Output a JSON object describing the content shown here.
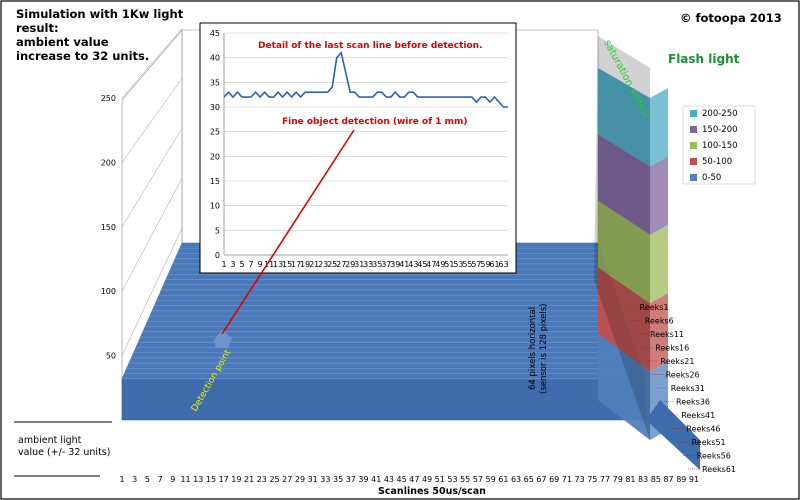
{
  "header": {
    "title_lines": [
      "Simulation with 1Kw light",
      "result:",
      "ambient value",
      "increase to 32 units."
    ],
    "copyright": "© fotoopa 2013"
  },
  "annotations": {
    "ambient_label_lines": [
      "ambient light",
      "value (+/- 32 units)"
    ],
    "detection_point": "Detection point",
    "fine_object": "Fine object detection (wire of 1 mm)",
    "pixels_note_lines": [
      "64 pixels horizontal",
      "(sensor is 128 pixels)"
    ],
    "saturation": "saturation sensor",
    "flash": "Flash light"
  },
  "chart_data": [
    {
      "type": "area3d",
      "ylim": [
        0,
        250
      ],
      "yticks": [
        50,
        100,
        150,
        200,
        250
      ],
      "xticks": [
        1,
        3,
        5,
        7,
        9,
        11,
        13,
        15,
        17,
        19,
        21,
        23,
        25,
        27,
        29,
        31,
        33,
        35,
        37,
        39,
        41,
        43,
        45,
        47,
        49,
        51,
        53,
        55,
        57,
        59,
        61,
        63,
        65,
        67,
        69,
        71,
        73,
        75,
        77,
        79,
        81,
        83,
        85,
        87,
        89,
        91
      ],
      "xlabel": "Scanlines 50us/scan",
      "series_labels": [
        "Reeks1",
        "Reeks6",
        "Reeks11",
        "Reeks16",
        "Reeks21",
        "Reeks26",
        "Reeks31",
        "Reeks36",
        "Reeks41",
        "Reeks46",
        "Reeks51",
        "Reeks56",
        "Reeks61"
      ],
      "legend": [
        {
          "label": "200-250",
          "color": "#4bacc6"
        },
        {
          "label": "150-200",
          "color": "#8064a2"
        },
        {
          "label": "100-150",
          "color": "#9bbb59"
        },
        {
          "label": "50-100",
          "color": "#c0504d"
        },
        {
          "label": "0-50",
          "color": "#4f81bd"
        }
      ],
      "ambient_value": 32,
      "flash_value": 250
    },
    {
      "type": "line",
      "title": "Detail of the last scan line before detection.",
      "ylim": [
        0,
        45
      ],
      "yticks": [
        0,
        5,
        10,
        15,
        20,
        25,
        30,
        35,
        40,
        45
      ],
      "xticks": [
        1,
        3,
        5,
        7,
        9,
        11,
        13,
        15,
        17,
        19,
        21,
        23,
        25,
        27,
        29,
        31,
        33,
        35,
        37,
        39,
        41,
        43,
        45,
        47,
        49,
        51,
        53,
        55,
        57,
        59,
        61,
        63
      ],
      "values": [
        32,
        33,
        32,
        33,
        32,
        32,
        32,
        33,
        32,
        33,
        32,
        32,
        33,
        32,
        33,
        32,
        33,
        32,
        33,
        33,
        33,
        33,
        33,
        33,
        34,
        40,
        41,
        37,
        33,
        33,
        32,
        32,
        32,
        32,
        33,
        33,
        32,
        32,
        33,
        32,
        32,
        33,
        33,
        32,
        32,
        32,
        32,
        32,
        32,
        32,
        32,
        32,
        32,
        32,
        32,
        32,
        31,
        32,
        32,
        31,
        32,
        31,
        30,
        30
      ],
      "color": "#2e63b3"
    }
  ]
}
